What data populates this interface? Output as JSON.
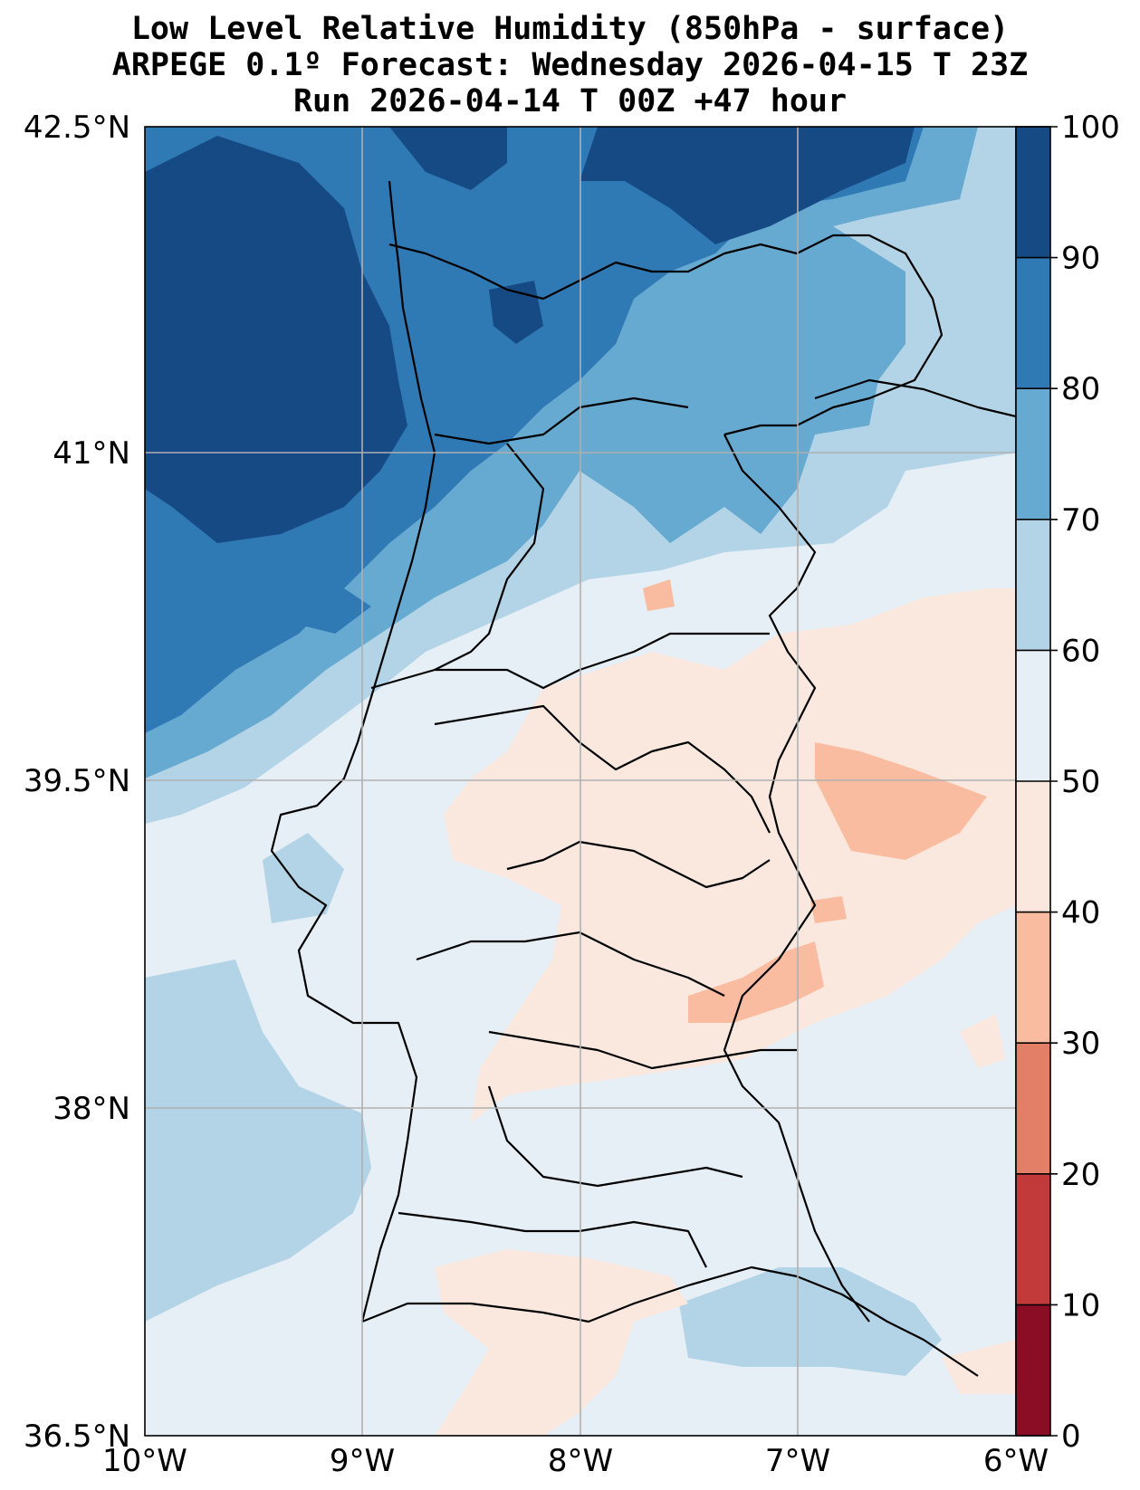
{
  "title": {
    "line1": "Low Level Relative Humidity (850hPa - surface)",
    "line2": "ARPEGE 0.1º Forecast: Wednesday 2026-04-15 T 23Z",
    "line3": "Run 2026-04-14 T 00Z +47 hour"
  },
  "axes": {
    "lat_labels": [
      "42.5°N",
      "41°N",
      "39.5°N",
      "38°N",
      "36.5°N"
    ],
    "lon_labels": [
      "10°W",
      "9°W",
      "8°W",
      "7°W",
      "6°W"
    ]
  },
  "colorbar": {
    "tick_labels": [
      "100",
      "90",
      "80",
      "70",
      "60",
      "50",
      "40",
      "30",
      "20",
      "10",
      "0"
    ],
    "band_colors": [
      "#164a84",
      "#2f79b5",
      "#66a9d1",
      "#b3d4e6",
      "#e6eef6",
      "#fae8df",
      "#f9bca0",
      "#e27f66",
      "#c23b3a",
      "#8a0d25"
    ]
  },
  "colors": {
    "band_90_100": "#164a84",
    "band_80_90": "#2f79b5",
    "band_70_80": "#66a9d1",
    "band_60_70": "#b3d4e6",
    "band_50_60": "#e6eef6",
    "band_40_50": "#fae8df",
    "band_30_40": "#f9bca0",
    "grid": "#b0b0b0",
    "border": "#000000"
  }
}
